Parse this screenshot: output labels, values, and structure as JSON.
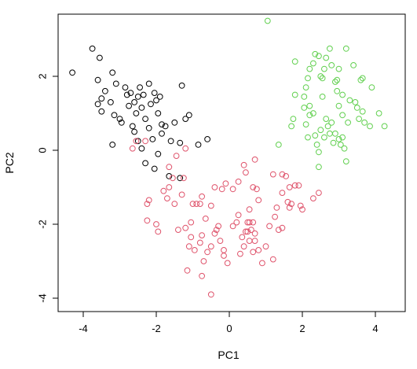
{
  "chart_data": {
    "type": "scatter",
    "title": "",
    "xlabel": "PC1",
    "ylabel": "PC2",
    "xlim": [
      -4.5,
      4.5
    ],
    "ylim": [
      -4.2,
      3.8
    ],
    "x_ticks": [
      -4,
      -2,
      0,
      2,
      4
    ],
    "y_ticks": [
      -4,
      -2,
      0,
      2
    ],
    "x_tick_labels": [
      "-4",
      "-2",
      "0",
      "2",
      "4"
    ],
    "y_tick_labels": [
      "-4",
      "-2",
      "0",
      "2"
    ],
    "grid": false,
    "legend": "none",
    "marker": "open-circle",
    "series": [
      {
        "color": "#000000",
        "points": [
          [
            -4.3,
            2.1
          ],
          [
            -3.75,
            2.75
          ],
          [
            -3.55,
            2.5
          ],
          [
            -3.6,
            1.9
          ],
          [
            -3.4,
            1.6
          ],
          [
            -3.5,
            1.4
          ],
          [
            -3.6,
            1.25
          ],
          [
            -3.5,
            1.05
          ],
          [
            -3.2,
            2.1
          ],
          [
            -3.1,
            1.8
          ],
          [
            -3.25,
            1.3
          ],
          [
            -3.15,
            0.95
          ],
          [
            -3.0,
            0.85
          ],
          [
            -2.95,
            0.75
          ],
          [
            -2.85,
            1.7
          ],
          [
            -2.8,
            1.5
          ],
          [
            -2.7,
            1.55
          ],
          [
            -2.75,
            1.2
          ],
          [
            -2.6,
            1.3
          ],
          [
            -2.55,
            1.0
          ],
          [
            -2.45,
            1.7
          ],
          [
            -2.5,
            1.45
          ],
          [
            -2.35,
            1.5
          ],
          [
            -2.4,
            1.15
          ],
          [
            -2.3,
            0.85
          ],
          [
            -2.2,
            1.8
          ],
          [
            -2.15,
            1.25
          ],
          [
            -2.05,
            1.55
          ],
          [
            -2.0,
            1.35
          ],
          [
            -1.95,
            1.0
          ],
          [
            -1.9,
            1.45
          ],
          [
            -1.85,
            0.7
          ],
          [
            -1.75,
            0.65
          ],
          [
            -1.5,
            0.75
          ],
          [
            -1.6,
            0.25
          ],
          [
            -1.3,
            1.75
          ],
          [
            -1.2,
            0.85
          ],
          [
            -1.1,
            0.95
          ],
          [
            -2.65,
            0.65
          ],
          [
            -2.6,
            0.5
          ],
          [
            -2.5,
            0.25
          ],
          [
            -2.4,
            0.05
          ],
          [
            -2.2,
            0.6
          ],
          [
            -2.1,
            0.3
          ],
          [
            -1.95,
            -0.1
          ],
          [
            -1.85,
            0.45
          ],
          [
            -2.3,
            -0.35
          ],
          [
            -2.05,
            -0.5
          ],
          [
            -3.2,
            0.15
          ],
          [
            -1.35,
            0.2
          ],
          [
            -0.85,
            0.15
          ],
          [
            -0.6,
            0.3
          ],
          [
            -1.65,
            -0.7
          ],
          [
            -1.35,
            -0.75
          ]
        ]
      },
      {
        "color": "#df536b",
        "points": [
          [
            -2.55,
            0.25
          ],
          [
            -2.3,
            0.25
          ],
          [
            -2.65,
            0.05
          ],
          [
            -1.45,
            -0.15
          ],
          [
            -1.2,
            0.05
          ],
          [
            -1.65,
            -0.45
          ],
          [
            -1.55,
            -0.75
          ],
          [
            -1.25,
            -0.75
          ],
          [
            -1.65,
            -1.0
          ],
          [
            -1.3,
            -1.2
          ],
          [
            -2.2,
            -1.35
          ],
          [
            -2.25,
            -1.45
          ],
          [
            -1.8,
            -1.1
          ],
          [
            -1.7,
            -1.3
          ],
          [
            -1.5,
            -1.45
          ],
          [
            -2.25,
            -1.9
          ],
          [
            -2.0,
            -2.0
          ],
          [
            -1.95,
            -2.2
          ],
          [
            -1.0,
            -1.45
          ],
          [
            -0.9,
            -1.45
          ],
          [
            -0.8,
            -1.45
          ],
          [
            -0.75,
            -1.25
          ],
          [
            -0.5,
            -1.5
          ],
          [
            -0.4,
            -1.0
          ],
          [
            -0.2,
            -1.05
          ],
          [
            -0.1,
            -0.9
          ],
          [
            0.1,
            -1.05
          ],
          [
            0.25,
            -0.85
          ],
          [
            0.45,
            -0.6
          ],
          [
            0.4,
            -0.4
          ],
          [
            0.7,
            -0.25
          ],
          [
            0.65,
            -1.0
          ],
          [
            0.75,
            -1.05
          ],
          [
            0.8,
            -1.35
          ],
          [
            0.55,
            -1.6
          ],
          [
            0.25,
            -1.75
          ],
          [
            0.2,
            -1.95
          ],
          [
            0.1,
            -2.05
          ],
          [
            0.5,
            -1.95
          ],
          [
            0.55,
            -1.95
          ],
          [
            0.65,
            -1.95
          ],
          [
            0.35,
            -2.35
          ],
          [
            0.45,
            -2.2
          ],
          [
            0.5,
            -2.2
          ],
          [
            0.6,
            -2.15
          ],
          [
            0.7,
            -2.25
          ],
          [
            0.55,
            -2.45
          ],
          [
            0.7,
            -2.45
          ],
          [
            0.8,
            -2.7
          ],
          [
            0.65,
            -2.75
          ],
          [
            1.2,
            -0.65
          ],
          [
            1.45,
            -0.65
          ],
          [
            1.55,
            -0.7
          ],
          [
            1.45,
            -1.15
          ],
          [
            1.65,
            -1.0
          ],
          [
            1.8,
            -0.95
          ],
          [
            1.9,
            -0.95
          ],
          [
            1.6,
            -1.4
          ],
          [
            1.7,
            -1.45
          ],
          [
            1.65,
            -1.55
          ],
          [
            1.3,
            -1.55
          ],
          [
            1.25,
            -1.8
          ],
          [
            1.95,
            -1.5
          ],
          [
            2.0,
            -1.6
          ],
          [
            2.45,
            -1.15
          ],
          [
            2.3,
            -1.3
          ],
          [
            1.1,
            -2.05
          ],
          [
            1.35,
            -2.15
          ],
          [
            1.45,
            -2.1
          ],
          [
            0.9,
            -3.05
          ],
          [
            -0.3,
            -2.05
          ],
          [
            -0.35,
            -2.15
          ],
          [
            -0.4,
            -2.25
          ],
          [
            -0.65,
            -1.85
          ],
          [
            -0.75,
            -2.3
          ],
          [
            -0.8,
            -2.5
          ],
          [
            -1.05,
            -1.95
          ],
          [
            -1.2,
            -2.1
          ],
          [
            -1.4,
            -2.15
          ],
          [
            -1.05,
            -2.35
          ],
          [
            -1.1,
            -2.6
          ],
          [
            -0.7,
            -3.0
          ],
          [
            -0.5,
            -2.6
          ],
          [
            -0.15,
            -2.7
          ],
          [
            -0.25,
            -2.45
          ],
          [
            -0.15,
            -2.85
          ],
          [
            -0.6,
            -2.75
          ],
          [
            -0.75,
            -3.4
          ],
          [
            -0.5,
            -3.9
          ],
          [
            -1.15,
            -3.25
          ],
          [
            -0.95,
            -2.7
          ],
          [
            -0.05,
            -3.05
          ],
          [
            0.3,
            -2.8
          ],
          [
            0.4,
            -2.6
          ],
          [
            1.0,
            -2.6
          ],
          [
            1.2,
            -2.95
          ]
        ]
      },
      {
        "color": "#61d04f",
        "points": [
          [
            1.05,
            3.5
          ],
          [
            1.35,
            0.15
          ],
          [
            1.8,
            2.4
          ],
          [
            1.8,
            1.5
          ],
          [
            2.2,
            1.2
          ],
          [
            2.2,
            0.95
          ],
          [
            2.1,
            0.7
          ],
          [
            2.3,
            1.0
          ],
          [
            2.35,
            0.4
          ],
          [
            2.15,
            0.35
          ],
          [
            2.5,
            0.55
          ],
          [
            2.6,
            0.35
          ],
          [
            2.4,
            0.15
          ],
          [
            2.45,
            -0.05
          ],
          [
            2.45,
            -0.45
          ],
          [
            2.55,
            1.45
          ],
          [
            2.65,
            0.85
          ],
          [
            2.7,
            0.65
          ],
          [
            2.75,
            0.45
          ],
          [
            2.8,
            0.75
          ],
          [
            2.9,
            0.45
          ],
          [
            2.85,
            0.2
          ],
          [
            3.0,
            0.3
          ],
          [
            3.1,
            0.35
          ],
          [
            3.15,
            0.05
          ],
          [
            3.25,
            0.75
          ],
          [
            3.1,
            0.95
          ],
          [
            3.0,
            1.2
          ],
          [
            2.95,
            1.6
          ],
          [
            3.1,
            1.5
          ],
          [
            3.3,
            1.35
          ],
          [
            3.45,
            1.3
          ],
          [
            3.5,
            1.15
          ],
          [
            3.65,
            1.05
          ],
          [
            3.55,
            0.85
          ],
          [
            3.7,
            0.75
          ],
          [
            3.85,
            0.65
          ],
          [
            4.25,
            0.65
          ],
          [
            4.1,
            1.0
          ],
          [
            3.9,
            1.7
          ],
          [
            3.65,
            1.95
          ],
          [
            3.4,
            2.3
          ],
          [
            3.2,
            2.75
          ],
          [
            3.0,
            2.2
          ],
          [
            2.8,
            2.3
          ],
          [
            2.65,
            2.5
          ],
          [
            2.6,
            2.2
          ],
          [
            2.55,
            1.95
          ],
          [
            2.45,
            2.55
          ],
          [
            2.35,
            2.6
          ],
          [
            2.3,
            2.35
          ],
          [
            2.2,
            2.2
          ],
          [
            2.15,
            1.95
          ],
          [
            2.1,
            1.7
          ],
          [
            2.05,
            1.45
          ],
          [
            1.75,
            0.85
          ],
          [
            1.7,
            0.65
          ],
          [
            2.75,
            2.75
          ],
          [
            2.95,
            1.9
          ],
          [
            3.05,
            0.15
          ],
          [
            3.6,
            1.9
          ],
          [
            2.05,
            1.15
          ],
          [
            2.5,
            2.0
          ],
          [
            3.2,
            -0.3
          ],
          [
            2.9,
            1.85
          ]
        ]
      }
    ]
  }
}
